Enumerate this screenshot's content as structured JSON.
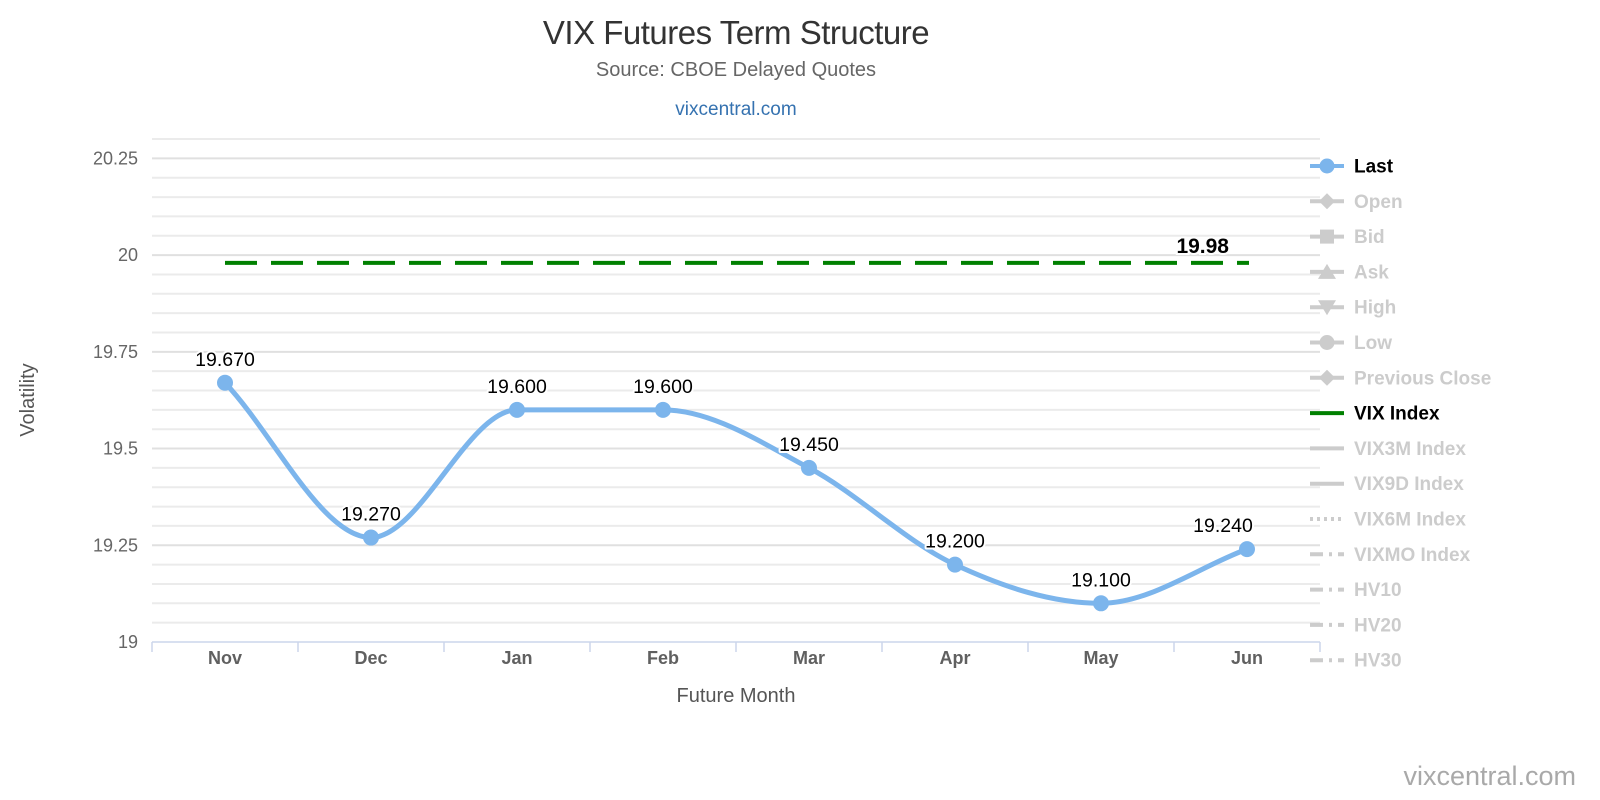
{
  "header": {
    "title": "VIX Futures Term Structure",
    "subtitle": "Source: CBOE Delayed Quotes",
    "link": "vixcentral.com"
  },
  "footer": {
    "watermark": "vixcentral.com"
  },
  "chart_data": {
    "type": "line",
    "title": "VIX Futures Term Structure",
    "subtitle": "Source: CBOE Delayed Quotes",
    "xlabel": "Future Month",
    "ylabel": "Volatility",
    "categories": [
      "Nov",
      "Dec",
      "Jan",
      "Feb",
      "Mar",
      "Apr",
      "May",
      "Jun"
    ],
    "series": [
      {
        "name": "Last",
        "type": "spline",
        "color": "#7cb5ec",
        "values": [
          19.67,
          19.27,
          19.6,
          19.6,
          19.45,
          19.2,
          19.1,
          19.24
        ],
        "labels": [
          "19.670",
          "19.270",
          "19.600",
          "19.600",
          "19.450",
          "19.200",
          "19.100",
          "19.240"
        ]
      },
      {
        "name": "VIX Index",
        "type": "hline",
        "color": "#008000",
        "dashed": true,
        "value": 19.98,
        "label": "19.98"
      }
    ],
    "ylim": [
      19,
      20.3
    ],
    "yticks": [
      19,
      19.25,
      19.5,
      19.75,
      20,
      20.25
    ],
    "ytick_labels": [
      "19",
      "19.25",
      "19.5",
      "19.75",
      "20",
      "20.25"
    ],
    "minor_step": 0.05,
    "grid": true,
    "legend_position": "right",
    "inactive_color": "#cccccc",
    "legend": [
      {
        "label": "Last",
        "marker": "circle",
        "line": "solid",
        "color": "#7cb5ec",
        "active": true
      },
      {
        "label": "Open",
        "marker": "diamond",
        "line": "solid",
        "active": false
      },
      {
        "label": "Bid",
        "marker": "square",
        "line": "solid",
        "active": false
      },
      {
        "label": "Ask",
        "marker": "triangle-up",
        "line": "solid",
        "active": false
      },
      {
        "label": "High",
        "marker": "triangle-down",
        "line": "solid",
        "active": false
      },
      {
        "label": "Low",
        "marker": "circle",
        "line": "solid",
        "active": false
      },
      {
        "label": "Previous Close",
        "marker": "diamond",
        "line": "solid",
        "active": false
      },
      {
        "label": "VIX Index",
        "marker": "none",
        "line": "solid",
        "color": "#008000",
        "active": true
      },
      {
        "label": "VIX3M Index",
        "marker": "none",
        "line": "solid",
        "active": false
      },
      {
        "label": "VIX9D Index",
        "marker": "none",
        "line": "solid",
        "active": false
      },
      {
        "label": "VIX6M Index",
        "marker": "none",
        "line": "dotted",
        "active": false
      },
      {
        "label": "VIXMO Index",
        "marker": "none",
        "line": "dashdot",
        "active": false
      },
      {
        "label": "HV10",
        "marker": "none",
        "line": "dashdot",
        "active": false
      },
      {
        "label": "HV20",
        "marker": "none",
        "line": "dashdot",
        "active": false
      },
      {
        "label": "HV30",
        "marker": "none",
        "line": "dashdot",
        "active": false
      }
    ]
  }
}
